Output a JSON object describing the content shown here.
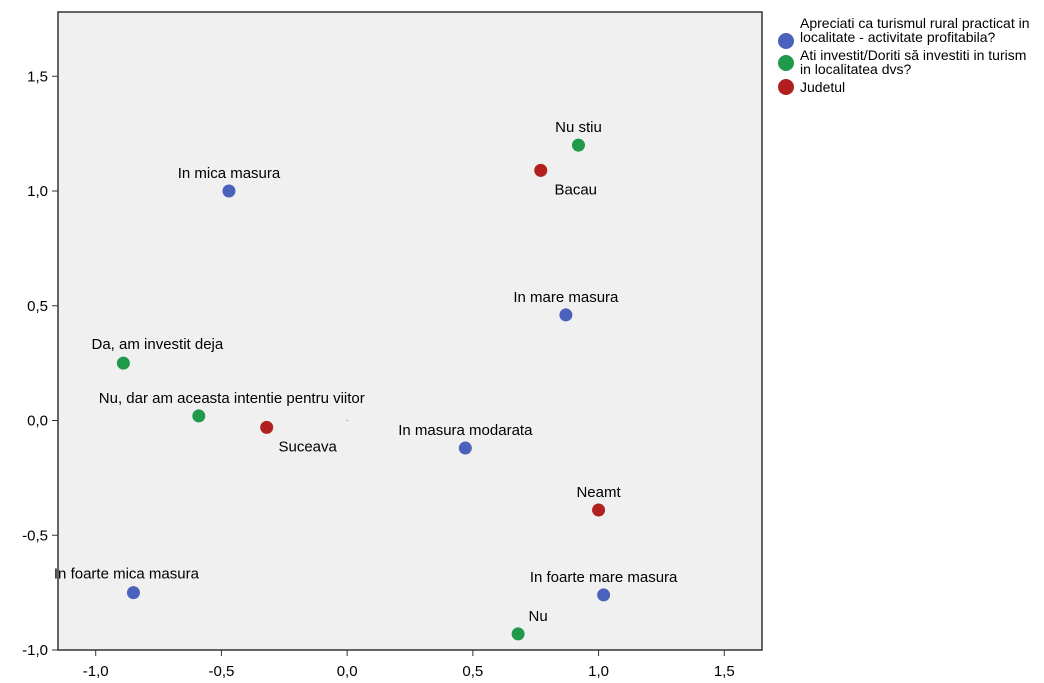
{
  "chart_data": {
    "type": "scatter",
    "xlim": [
      -1.15,
      1.65
    ],
    "ylim": [
      -1.0,
      1.78
    ],
    "x_ticks": [
      -1.0,
      -0.5,
      0.0,
      0.5,
      1.0,
      1.5
    ],
    "y_ticks": [
      -1.0,
      -0.5,
      0.0,
      0.5,
      1.0,
      1.5
    ],
    "x_tick_labels": [
      "-1,0",
      "-0,5",
      "0,0",
      "0,5",
      "1,0",
      "1,5"
    ],
    "y_tick_labels": [
      "-1,0",
      "-0,5",
      "0,0",
      "0,5",
      "1,0",
      "1,5"
    ],
    "grid": false,
    "legend_position": "right",
    "series": [
      {
        "name": "Apreciati ca turismul rural practicat in localitate - activitate profitabila?",
        "color": "#4a62bb",
        "points": [
          {
            "x": -0.47,
            "y": 1.0,
            "label": "In mica masura"
          },
          {
            "x": 0.87,
            "y": 0.46,
            "label": "In mare masura"
          },
          {
            "x": 0.47,
            "y": -0.12,
            "label": "In masura modarata"
          },
          {
            "x": -0.85,
            "y": -0.75,
            "label": "In foarte mica masura"
          },
          {
            "x": 1.02,
            "y": -0.76,
            "label": "In foarte mare masura"
          }
        ]
      },
      {
        "name": "Ati investit/Doriti să investiti in turism in localitatea dvs?",
        "color": "#1e9a4a",
        "points": [
          {
            "x": 0.92,
            "y": 1.2,
            "label": "Nu stiu"
          },
          {
            "x": -0.89,
            "y": 0.25,
            "label": "Da, am investit deja"
          },
          {
            "x": -0.59,
            "y": 0.02,
            "label": "Nu, dar am aceasta intentie pentru viitor"
          },
          {
            "x": 0.68,
            "y": -0.93,
            "label": "Nu"
          }
        ]
      },
      {
        "name": "Judetul",
        "color": "#b11f1f",
        "points": [
          {
            "x": 0.77,
            "y": 1.09,
            "label": "Bacau"
          },
          {
            "x": -0.32,
            "y": -0.03,
            "label": "Suceava"
          },
          {
            "x": 1.0,
            "y": -0.39,
            "label": "Neamt"
          }
        ]
      }
    ]
  },
  "legend": {
    "items": [
      {
        "label": "Apreciati ca turismul rural practicat in localitate - activitate profitabila?",
        "color": "#4a62bb"
      },
      {
        "label": "Ati investit/Doriti să investiti in turism in localitatea dvs?",
        "color": "#1e9a4a"
      },
      {
        "label": "Judetul",
        "color": "#b11f1f"
      }
    ]
  }
}
